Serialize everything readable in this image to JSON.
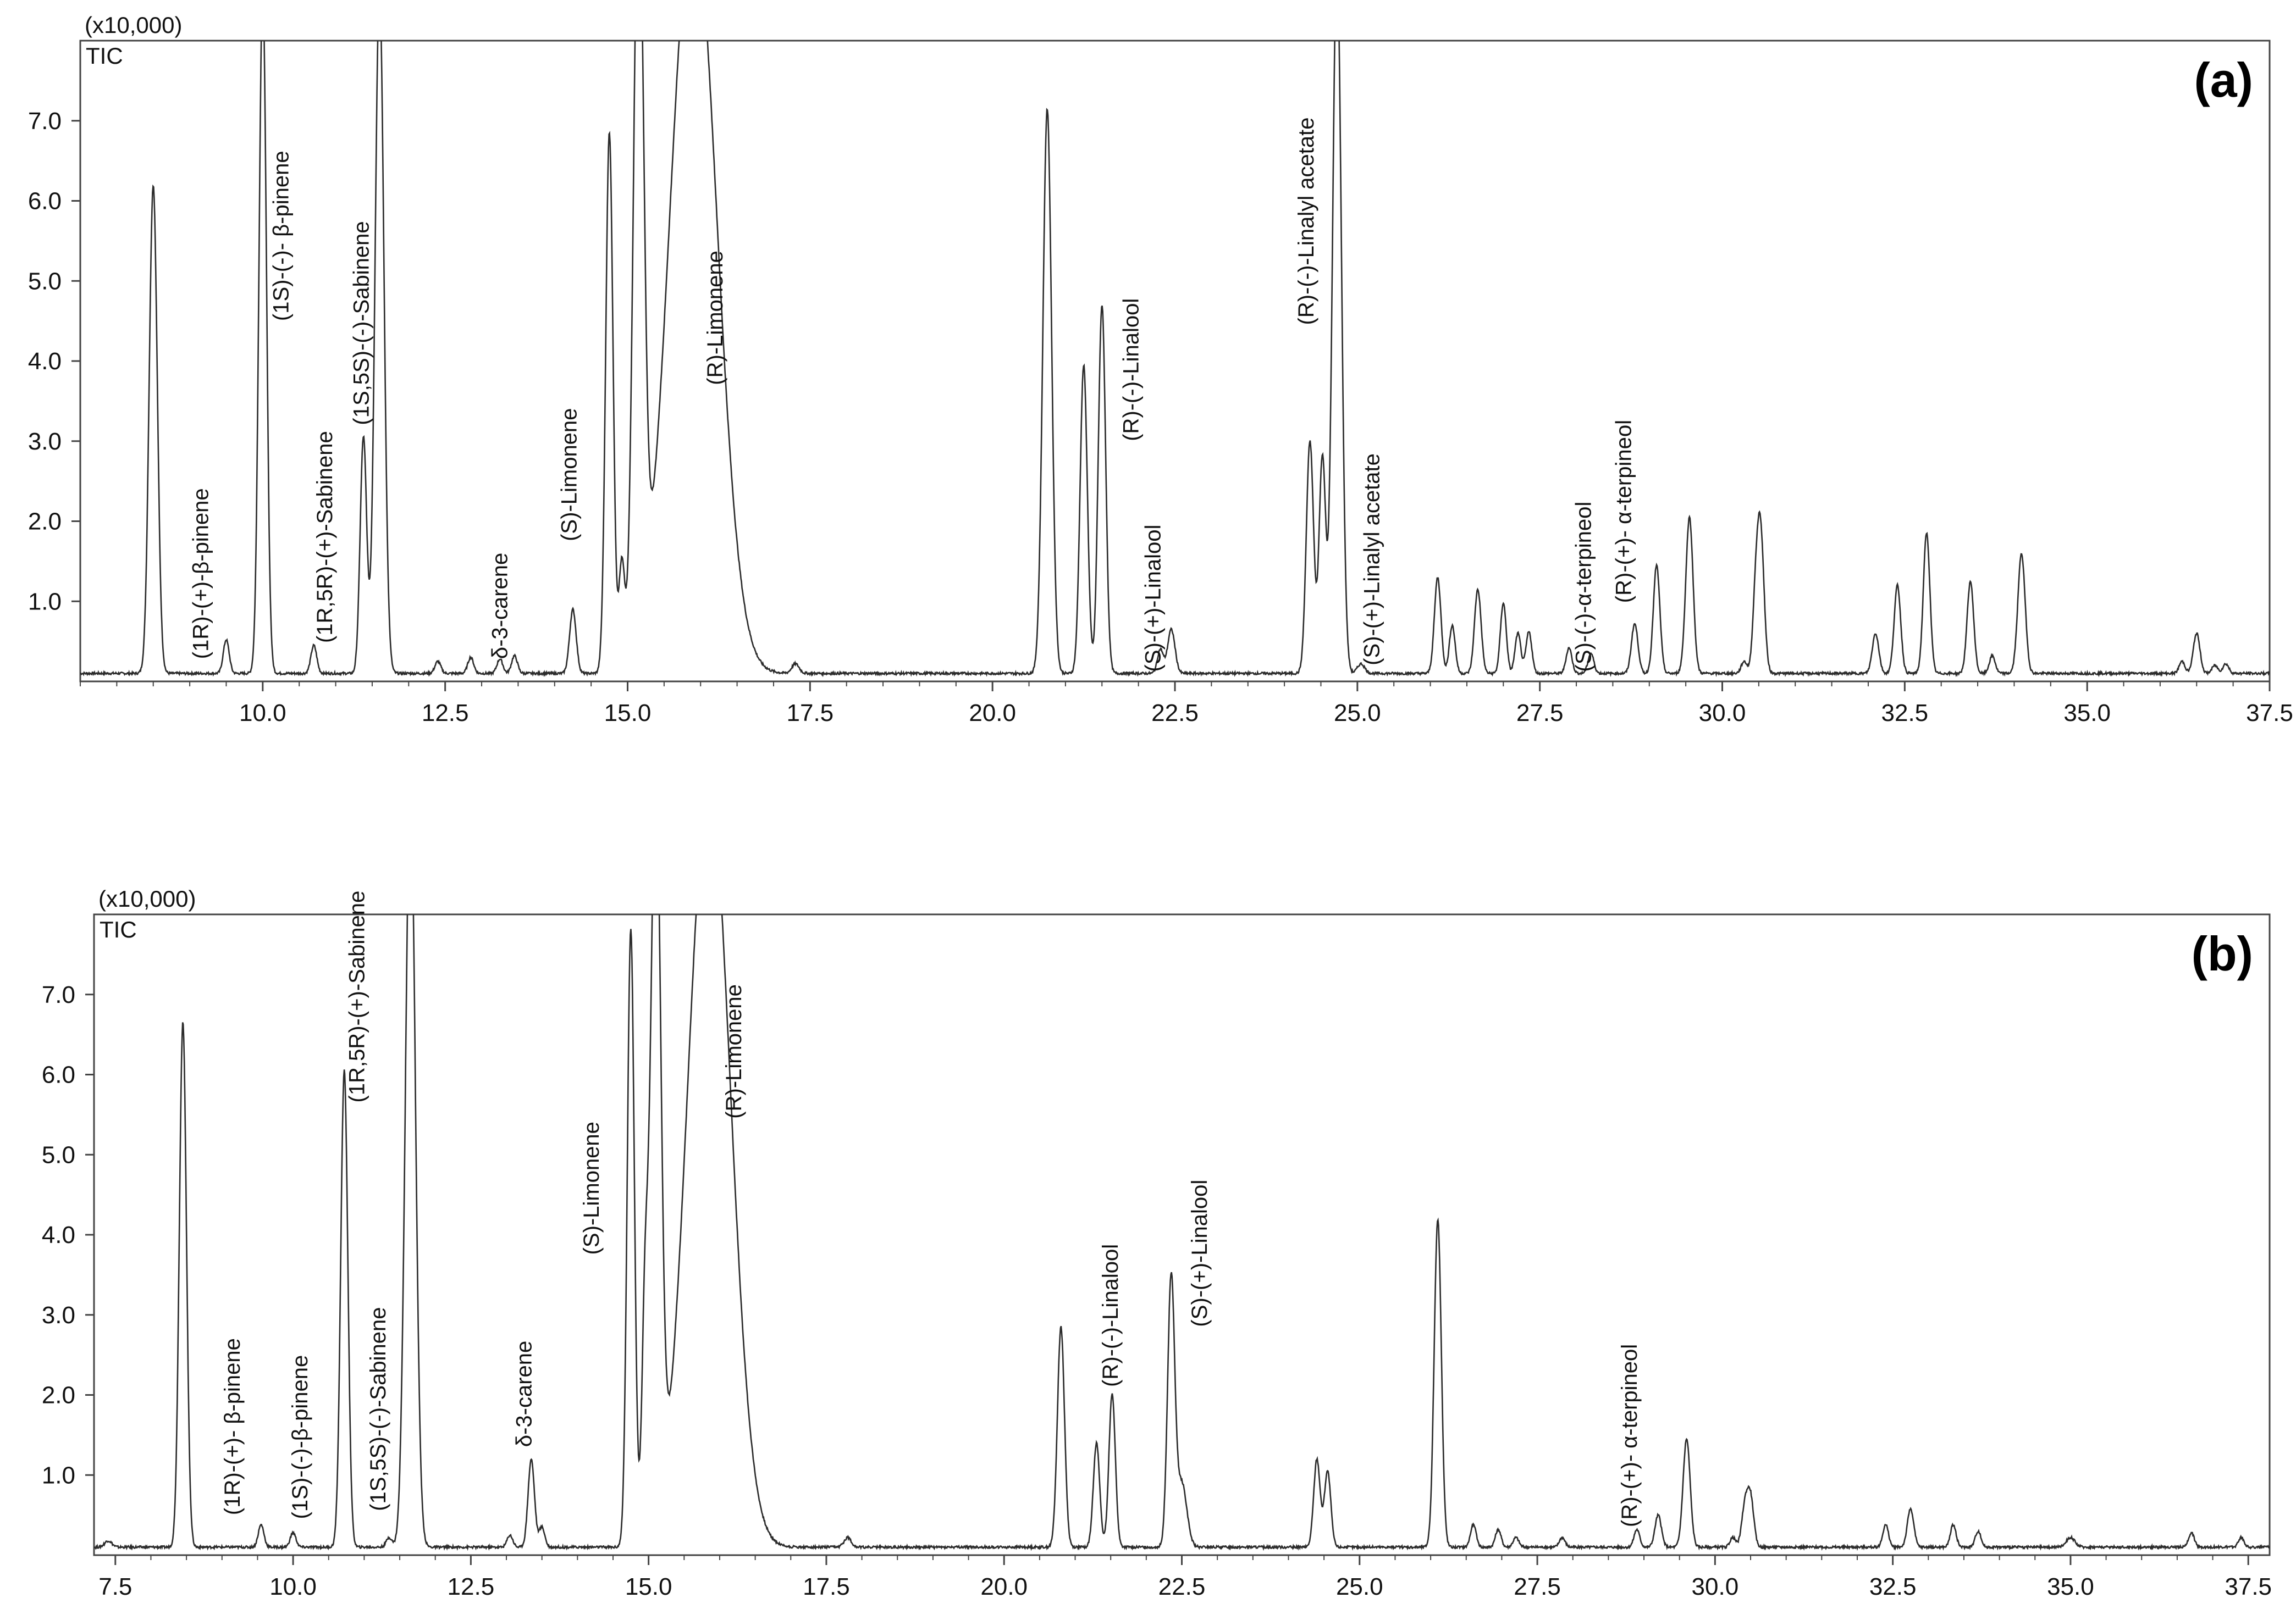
{
  "chart_data": [
    {
      "type": "line",
      "panel": "(a)",
      "multiplier_label": "(x10,000)",
      "trace_label": "TIC",
      "xlim": [
        7.5,
        37.5
      ],
      "ylim": [
        0,
        8.0
      ],
      "x_ticks": [
        "10.0",
        "12.5",
        "15.0",
        "17.5",
        "20.0",
        "22.5",
        "25.0",
        "27.5",
        "30.0",
        "32.5",
        "35.0",
        "37.5"
      ],
      "y_ticks": [
        "1.0",
        "2.0",
        "3.0",
        "4.0",
        "5.0",
        "6.0",
        "7.0"
      ],
      "baseline": 0.1,
      "peaks": [
        {
          "x": 8.5,
          "h": 6.1,
          "w": 0.055
        },
        {
          "x": 9.5,
          "h": 0.42,
          "w": 0.04
        },
        {
          "x": 10.0,
          "h": 8.6,
          "w": 0.05
        },
        {
          "x": 10.7,
          "h": 0.35,
          "w": 0.04
        },
        {
          "x": 11.38,
          "h": 2.95,
          "w": 0.045
        },
        {
          "x": 11.6,
          "h": 8.6,
          "w": 0.06
        },
        {
          "x": 12.4,
          "h": 0.15,
          "w": 0.04
        },
        {
          "x": 12.85,
          "h": 0.2,
          "w": 0.04
        },
        {
          "x": 13.25,
          "h": 0.18,
          "w": 0.04
        },
        {
          "x": 13.45,
          "h": 0.22,
          "w": 0.04
        },
        {
          "x": 14.25,
          "h": 0.8,
          "w": 0.045
        },
        {
          "x": 14.75,
          "h": 6.75,
          "w": 0.05
        },
        {
          "x": 14.92,
          "h": 1.3,
          "w": 0.04
        },
        {
          "x": 15.15,
          "h": 9.5,
          "w": 0.07
        },
        {
          "x": 15.9,
          "h": 9.5,
          "w": 0.32
        },
        {
          "x": 17.3,
          "h": 0.12,
          "w": 0.05
        },
        {
          "x": 20.75,
          "h": 7.05,
          "w": 0.06
        },
        {
          "x": 21.25,
          "h": 3.85,
          "w": 0.05
        },
        {
          "x": 21.5,
          "h": 4.6,
          "w": 0.05
        },
        {
          "x": 22.3,
          "h": 0.3,
          "w": 0.04
        },
        {
          "x": 22.45,
          "h": 0.55,
          "w": 0.05
        },
        {
          "x": 24.35,
          "h": 2.9,
          "w": 0.05
        },
        {
          "x": 24.52,
          "h": 2.7,
          "w": 0.045
        },
        {
          "x": 24.72,
          "h": 9.0,
          "w": 0.06
        },
        {
          "x": 25.05,
          "h": 0.12,
          "w": 0.05
        },
        {
          "x": 26.1,
          "h": 1.2,
          "w": 0.045
        },
        {
          "x": 26.3,
          "h": 0.6,
          "w": 0.04
        },
        {
          "x": 26.65,
          "h": 1.05,
          "w": 0.045
        },
        {
          "x": 27.0,
          "h": 0.88,
          "w": 0.04
        },
        {
          "x": 27.2,
          "h": 0.5,
          "w": 0.04
        },
        {
          "x": 27.35,
          "h": 0.52,
          "w": 0.04
        },
        {
          "x": 27.9,
          "h": 0.32,
          "w": 0.04
        },
        {
          "x": 28.2,
          "h": 0.25,
          "w": 0.04
        },
        {
          "x": 28.8,
          "h": 0.62,
          "w": 0.045
        },
        {
          "x": 29.1,
          "h": 1.35,
          "w": 0.045
        },
        {
          "x": 29.55,
          "h": 1.95,
          "w": 0.05
        },
        {
          "x": 30.3,
          "h": 0.15,
          "w": 0.04
        },
        {
          "x": 30.45,
          "h": 0.6,
          "w": 0.04
        },
        {
          "x": 30.52,
          "h": 1.85,
          "w": 0.05
        },
        {
          "x": 32.1,
          "h": 0.5,
          "w": 0.045
        },
        {
          "x": 32.4,
          "h": 1.1,
          "w": 0.045
        },
        {
          "x": 32.8,
          "h": 1.75,
          "w": 0.045
        },
        {
          "x": 33.4,
          "h": 1.15,
          "w": 0.045
        },
        {
          "x": 33.7,
          "h": 0.22,
          "w": 0.04
        },
        {
          "x": 34.1,
          "h": 1.5,
          "w": 0.05
        },
        {
          "x": 36.3,
          "h": 0.15,
          "w": 0.04
        },
        {
          "x": 36.5,
          "h": 0.5,
          "w": 0.045
        },
        {
          "x": 36.75,
          "h": 0.1,
          "w": 0.04
        },
        {
          "x": 36.9,
          "h": 0.12,
          "w": 0.04
        }
      ],
      "annotations": [
        {
          "text": "(1R)-(+)-β-pinene",
          "x": 9.25,
          "y": 0.28
        },
        {
          "text": "(1S)-(-)- β-pinene",
          "x": 10.35,
          "y": 4.5
        },
        {
          "text": "(1R,5R)-(+)-Sabinene",
          "x": 10.95,
          "y": 0.48
        },
        {
          "text": "(1S,5S)-(-)-Sabinene",
          "x": 11.45,
          "y": 3.2
        },
        {
          "text": "δ-3-carene",
          "x": 13.35,
          "y": 0.28
        },
        {
          "text": "(S)-Limonene",
          "x": 14.3,
          "y": 1.75
        },
        {
          "text": "(R)-Limonene",
          "x": 16.3,
          "y": 3.7
        },
        {
          "text": "(R)-(-)-Linalool",
          "x": 22.0,
          "y": 3.0
        },
        {
          "text": "(S)-(+)-Linalool",
          "x": 22.3,
          "y": 0.12
        },
        {
          "text": "(R)-(-)-Linalyl acetate",
          "x": 24.4,
          "y": 4.45
        },
        {
          "text": "(S)-(+)-Linalyl acetate",
          "x": 25.3,
          "y": 0.2
        },
        {
          "text": "(S)-(-)-α-terpineol",
          "x": 28.2,
          "y": 0.12
        },
        {
          "text": "(R)-(+)- α-terpineol",
          "x": 28.75,
          "y": 0.98
        }
      ]
    },
    {
      "type": "line",
      "panel": "(b)",
      "multiplier_label": "(x10,000)",
      "trace_label": "TIC",
      "xlim": [
        7.2,
        37.8
      ],
      "ylim": [
        0,
        8.0
      ],
      "x_ticks": [
        "7.5",
        "10.0",
        "12.5",
        "15.0",
        "17.5",
        "20.0",
        "22.5",
        "25.0",
        "27.5",
        "30.0",
        "32.5",
        "35.0",
        "37.5"
      ],
      "y_ticks": [
        "1.0",
        "2.0",
        "3.0",
        "4.0",
        "5.0",
        "6.0",
        "7.0"
      ],
      "baseline": 0.1,
      "peaks": [
        {
          "x": 7.4,
          "h": 0.08,
          "w": 0.05
        },
        {
          "x": 8.45,
          "h": 6.55,
          "w": 0.05
        },
        {
          "x": 9.55,
          "h": 0.28,
          "w": 0.04
        },
        {
          "x": 10.0,
          "h": 0.18,
          "w": 0.04
        },
        {
          "x": 10.72,
          "h": 5.95,
          "w": 0.05
        },
        {
          "x": 11.35,
          "h": 0.12,
          "w": 0.04
        },
        {
          "x": 11.65,
          "h": 9.5,
          "w": 0.07
        },
        {
          "x": 13.05,
          "h": 0.15,
          "w": 0.04
        },
        {
          "x": 13.35,
          "h": 1.1,
          "w": 0.045
        },
        {
          "x": 13.5,
          "h": 0.25,
          "w": 0.04
        },
        {
          "x": 14.75,
          "h": 7.7,
          "w": 0.05
        },
        {
          "x": 14.95,
          "h": 2.75,
          "w": 0.045
        },
        {
          "x": 15.1,
          "h": 9.5,
          "w": 0.07
        },
        {
          "x": 15.85,
          "h": 9.5,
          "w": 0.3
        },
        {
          "x": 17.8,
          "h": 0.12,
          "w": 0.05
        },
        {
          "x": 20.8,
          "h": 2.75,
          "w": 0.05
        },
        {
          "x": 21.3,
          "h": 1.3,
          "w": 0.045
        },
        {
          "x": 21.52,
          "h": 1.92,
          "w": 0.045
        },
        {
          "x": 22.35,
          "h": 3.35,
          "w": 0.05
        },
        {
          "x": 22.5,
          "h": 0.8,
          "w": 0.07
        },
        {
          "x": 24.4,
          "h": 1.1,
          "w": 0.045
        },
        {
          "x": 24.55,
          "h": 0.95,
          "w": 0.045
        },
        {
          "x": 26.1,
          "h": 4.1,
          "w": 0.05
        },
        {
          "x": 26.6,
          "h": 0.28,
          "w": 0.04
        },
        {
          "x": 26.95,
          "h": 0.22,
          "w": 0.04
        },
        {
          "x": 27.2,
          "h": 0.12,
          "w": 0.04
        },
        {
          "x": 27.85,
          "h": 0.12,
          "w": 0.04
        },
        {
          "x": 28.9,
          "h": 0.22,
          "w": 0.04
        },
        {
          "x": 29.2,
          "h": 0.4,
          "w": 0.045
        },
        {
          "x": 29.6,
          "h": 1.35,
          "w": 0.05
        },
        {
          "x": 30.25,
          "h": 0.12,
          "w": 0.04
        },
        {
          "x": 30.42,
          "h": 0.5,
          "w": 0.045
        },
        {
          "x": 30.5,
          "h": 0.6,
          "w": 0.045
        },
        {
          "x": 32.4,
          "h": 0.28,
          "w": 0.04
        },
        {
          "x": 32.75,
          "h": 0.48,
          "w": 0.045
        },
        {
          "x": 33.35,
          "h": 0.28,
          "w": 0.04
        },
        {
          "x": 33.7,
          "h": 0.2,
          "w": 0.04
        },
        {
          "x": 35.0,
          "h": 0.12,
          "w": 0.06
        },
        {
          "x": 36.7,
          "h": 0.18,
          "w": 0.04
        },
        {
          "x": 37.4,
          "h": 0.12,
          "w": 0.04
        }
      ],
      "annotations": [
        {
          "text": "(1R)-(+)- β-pinene",
          "x": 9.25,
          "y": 0.5
        },
        {
          "text": "(1S)-(-)-β-pinene",
          "x": 10.2,
          "y": 0.45
        },
        {
          "text": "(1R,5R)-(+)-Sabinene",
          "x": 11.0,
          "y": 5.65
        },
        {
          "text": "(1S,5S)-(-)-Sabinene",
          "x": 11.3,
          "y": 0.55
        },
        {
          "text": "δ-3-carene",
          "x": 13.35,
          "y": 1.35
        },
        {
          "text": "(S)-Limonene",
          "x": 14.3,
          "y": 3.75
        },
        {
          "text": "(R)-Limonene",
          "x": 16.3,
          "y": 5.45
        },
        {
          "text": "(R)-(-)-Linalool",
          "x": 21.6,
          "y": 2.1
        },
        {
          "text": "(S)-(+)-Linalool",
          "x": 22.85,
          "y": 2.85
        },
        {
          "text": "(R)-(+)- α-terpineol",
          "x": 28.9,
          "y": 0.35
        }
      ]
    }
  ]
}
